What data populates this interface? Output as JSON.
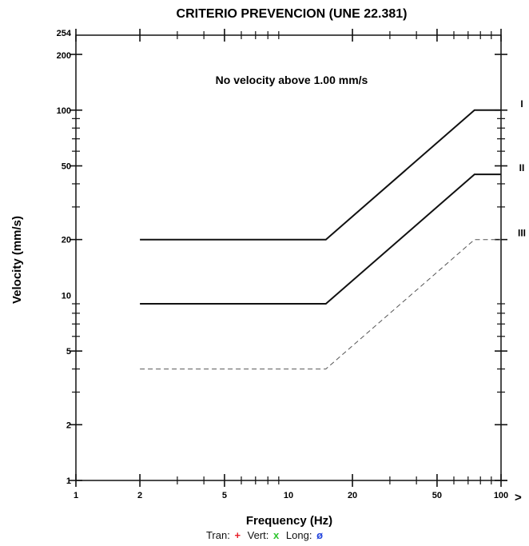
{
  "chart_data": {
    "type": "line",
    "title": "CRITERIO PREVENCION (UNE 22.381)",
    "xlabel": "Frequency (Hz)",
    "ylabel": "Velocity (mm/s)",
    "x_scale": "log",
    "y_scale": "log",
    "xlim": [
      1,
      100
    ],
    "ylim": [
      1,
      254
    ],
    "x_ticks": [
      {
        "value": 1,
        "label": "1"
      },
      {
        "value": 2,
        "label": "2"
      },
      {
        "value": 5,
        "label": "5"
      },
      {
        "value": 10,
        "label": "10"
      },
      {
        "value": 20,
        "label": "20"
      },
      {
        "value": 50,
        "label": "50"
      },
      {
        "value": 100,
        "label": "100"
      }
    ],
    "y_ticks": [
      {
        "value": 1,
        "label": "1"
      },
      {
        "value": 2,
        "label": "2"
      },
      {
        "value": 5,
        "label": "5"
      },
      {
        "value": 10,
        "label": "10"
      },
      {
        "value": 20,
        "label": "20"
      },
      {
        "value": 50,
        "label": "50"
      },
      {
        "value": 100,
        "label": "100"
      },
      {
        "value": 200,
        "label": "200"
      },
      {
        "value": 254,
        "label": "254"
      }
    ],
    "x_arrow": ">",
    "annotation": "No velocity above 1.00 mm/s",
    "series": [
      {
        "name": "I",
        "style": "solid",
        "x": [
          2,
          15,
          75,
          100
        ],
        "y": [
          20,
          20,
          100,
          100
        ]
      },
      {
        "name": "II",
        "style": "solid",
        "x": [
          2,
          15,
          75,
          100
        ],
        "y": [
          9,
          9,
          45,
          45
        ]
      },
      {
        "name": "III",
        "style": "dashed",
        "x": [
          2,
          15,
          75,
          100
        ],
        "y": [
          4,
          4,
          20,
          20
        ]
      }
    ],
    "grid": false
  },
  "legend": {
    "tran_label": "Tran:",
    "tran_marker": "+",
    "vert_label": "Vert:",
    "vert_marker": "x",
    "long_label": "Long:",
    "long_marker": "ø",
    "tran_color": "#e8202a",
    "vert_color": "#2cc52c",
    "long_color": "#2244dd"
  }
}
